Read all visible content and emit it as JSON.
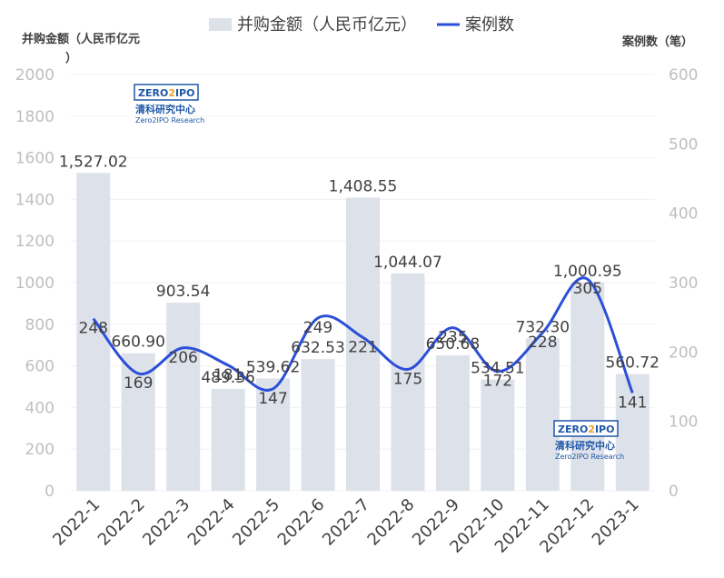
{
  "chart_data": {
    "type": "bar",
    "categories": [
      "2022-1",
      "2022-2",
      "2022-3",
      "2022-4",
      "2022-5",
      "2022-6",
      "2022-7",
      "2022-8",
      "2022-9",
      "2022-10",
      "2022-11",
      "2022-12",
      "2023-1"
    ],
    "series": [
      {
        "name": "并购金额（人民币亿元）",
        "type": "bar",
        "axis": "left",
        "values": [
          1527.02,
          660.9,
          903.54,
          489.36,
          539.62,
          632.53,
          1408.55,
          1044.07,
          650.68,
          534.51,
          732.3,
          1000.95,
          560.72
        ],
        "labels": [
          "1,527.02",
          "660.90",
          "903.54",
          "489.36",
          "539.62",
          "632.53",
          "1,408.55",
          "1,044.07",
          "650.68",
          "534.51",
          "732.30",
          "1,000.95",
          "560.72"
        ],
        "color": "#dde1ea"
      },
      {
        "name": "案例数",
        "type": "line",
        "axis": "right",
        "values": [
          248,
          169,
          206,
          181,
          147,
          249,
          221,
          175,
          235,
          172,
          228,
          305,
          141
        ],
        "color": "#2b4fd9"
      }
    ],
    "y_left": {
      "label": "并购金额（人民币亿元）",
      "ylim": [
        0,
        2000
      ],
      "ticks": [
        0,
        200,
        400,
        600,
        800,
        1000,
        1200,
        1400,
        1600,
        1800,
        2000
      ]
    },
    "y_right": {
      "label": "案例数（笔）",
      "ylim": [
        0,
        600
      ],
      "ticks": [
        0,
        100,
        200,
        300,
        400,
        500,
        600
      ]
    },
    "grid": true,
    "legend_position": "top-center"
  },
  "logo": {
    "name_left": "ZERO",
    "name_mid": "2",
    "name_right": "IPO",
    "cn": "清科研究中心",
    "en": "Zero2IPO Research"
  }
}
